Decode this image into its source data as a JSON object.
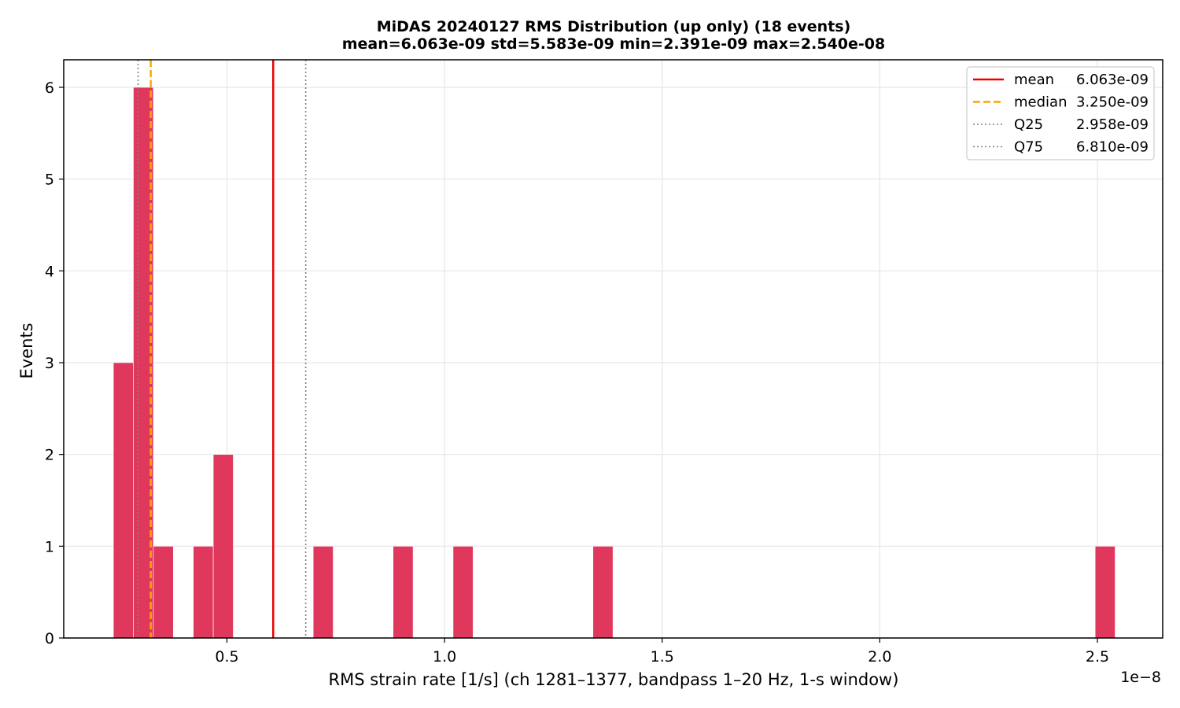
{
  "chart_data": {
    "type": "bar",
    "title": "MiDAS 20240127  RMS Distribution  (up only)  (18 events)",
    "subtitle": "mean=6.063e-09  std=5.583e-09  min=2.391e-09  max=2.540e-08",
    "xlabel": "RMS strain rate [1/s]  (ch 1281–1377, bandpass 1–20 Hz, 1-s window)",
    "ylabel": "Events",
    "x_offset_label": "1e−8",
    "xlim": [
      0.125,
      2.65
    ],
    "ylim": [
      0,
      6.3
    ],
    "xticks": [
      0.5,
      1.0,
      1.5,
      2.0,
      2.5
    ],
    "xtick_labels": [
      "0.5",
      "1.0",
      "1.5",
      "2.0",
      "2.5"
    ],
    "yticks": [
      0,
      1,
      2,
      3,
      4,
      5,
      6
    ],
    "ytick_labels": [
      "0",
      "1",
      "2",
      "3",
      "4",
      "5",
      "6"
    ],
    "grid": true,
    "bar_color": "#e0385c",
    "bins": [
      {
        "x0": 0.2391,
        "x1": 0.285,
        "count": 3
      },
      {
        "x0": 0.285,
        "x1": 0.3309,
        "count": 6
      },
      {
        "x0": 0.3309,
        "x1": 0.3768,
        "count": 1
      },
      {
        "x0": 0.4227,
        "x1": 0.4686,
        "count": 1
      },
      {
        "x0": 0.4686,
        "x1": 0.5145,
        "count": 2
      },
      {
        "x0": 0.6982,
        "x1": 0.7441,
        "count": 1
      },
      {
        "x0": 0.8818,
        "x1": 0.9277,
        "count": 1
      },
      {
        "x0": 1.0196,
        "x1": 1.0655,
        "count": 1
      },
      {
        "x0": 1.341,
        "x1": 1.3869,
        "count": 1
      },
      {
        "x0": 2.4948,
        "x1": 2.5407,
        "count": 1
      }
    ],
    "reference_lines": [
      {
        "name": "mean",
        "value": 0.6063,
        "color": "#ee0000",
        "style": "solid"
      },
      {
        "name": "median",
        "value": 0.325,
        "color": "#ffa500",
        "style": "dashed"
      },
      {
        "name": "Q25",
        "value": 0.2958,
        "color": "#808080",
        "style": "dotted"
      },
      {
        "name": "Q75",
        "value": 0.681,
        "color": "#808080",
        "style": "dotted"
      }
    ],
    "legend_position": "top-right",
    "legend": [
      {
        "label": "mean",
        "value": "6.063e-09"
      },
      {
        "label": "median",
        "value": "3.250e-09"
      },
      {
        "label": "Q25",
        "value": "2.958e-09"
      },
      {
        "label": "Q75",
        "value": "6.810e-09"
      }
    ]
  }
}
